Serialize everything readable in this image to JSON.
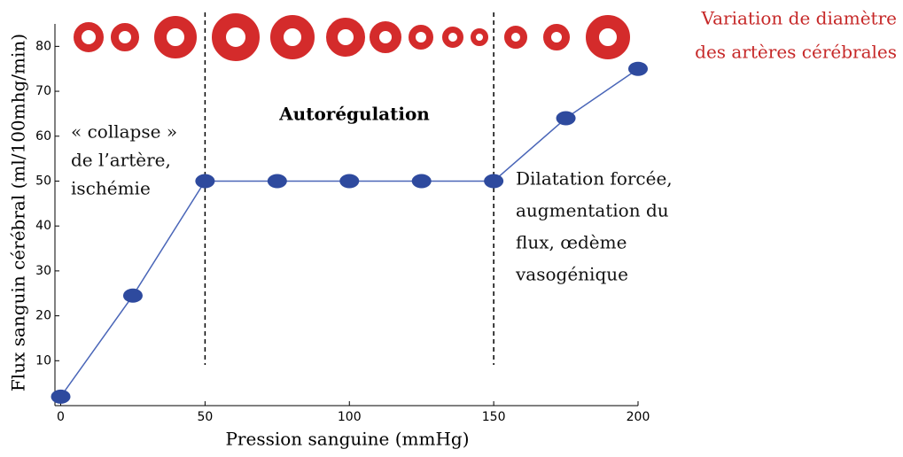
{
  "chart_data": {
    "type": "line",
    "x_label": "Pression sanguine (mmHg)",
    "y_label": "Flux sanguin cérébral (ml/100mhg/min)",
    "x": [
      0,
      25,
      50,
      75,
      100,
      125,
      150,
      175,
      200
    ],
    "series": [
      {
        "color": "#2e4a9e",
        "values": [
          2,
          24.5,
          50,
          50,
          50,
          50,
          50,
          64,
          75
        ]
      }
    ],
    "xlim": [
      -2,
      200
    ],
    "ylim": [
      0,
      85
    ],
    "xticks": [
      0,
      50,
      100,
      150,
      200
    ],
    "yticks": [
      10,
      20,
      30,
      40,
      50,
      60,
      70,
      80
    ],
    "vlines": [
      50,
      150
    ],
    "annotations": {
      "rings": [
        "Variation de diamètre",
        "des artères cérébrales"
      ],
      "autoregulation": "Autorégulation",
      "collapse": [
        "« collapse »",
        "de l’artère,",
        "ischémie"
      ],
      "dilatation": [
        "Dilatation forcée,",
        "augmentation du",
        "flux, œdème",
        "vasogénique"
      ]
    }
  }
}
